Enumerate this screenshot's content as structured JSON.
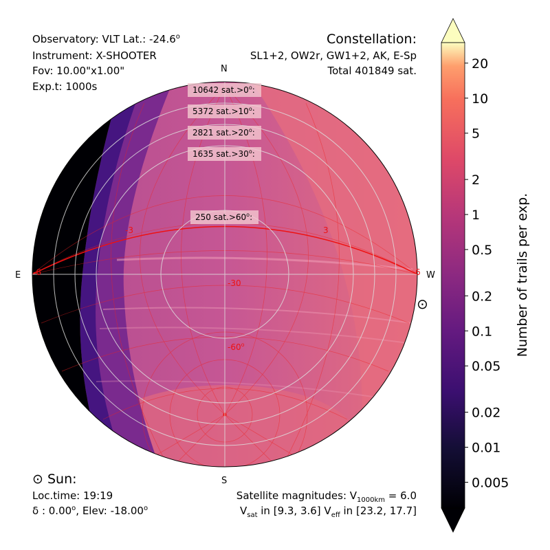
{
  "chart_data": {
    "type": "heatmap",
    "projection": "polar sky map (horizontal coordinates)",
    "observatory_text": "Observatory: VLT Lat.: -24.6",
    "observatory_deg": "o",
    "instrument_text": "Instrument: X-SHOOTER",
    "fov_text": "Fov: 10.00\"x1.00\"",
    "exptime_text": "Exp.t: 1000s",
    "constellation_title": "Constellation:",
    "constellation_names": "SL1+2, OW2r, GW1+2, AK, E-Sp",
    "constellation_total": "Total 401849 sat.",
    "directions": {
      "north": "N",
      "south": "S",
      "east": "E",
      "west": "W"
    },
    "elevation_counts": [
      {
        "label": "10642 sat.>0",
        "deg": "o",
        "suffix": ":"
      },
      {
        "label": "5372 sat.>10",
        "deg": "o",
        "suffix": ":"
      },
      {
        "label": "2821 sat.>20",
        "deg": "o",
        "suffix": ":"
      },
      {
        "label": "1635 sat.>30",
        "deg": "o",
        "suffix": ":"
      },
      {
        "label": "250 sat.>60",
        "deg": "o",
        "suffix": ":"
      }
    ],
    "altitude_circles_deg": [
      0,
      10,
      20,
      30,
      60
    ],
    "grid_labels": [
      "-3",
      "3",
      "-6",
      "6",
      "-30",
      "-60",
      "o"
    ],
    "sun_title": "Sun:",
    "sun_symbol": "⊙",
    "sun_loctime": "Loc.time: 19:19",
    "sun_delta": "δ : 0.00",
    "sun_elev": ", Elev: -18.00",
    "sun_deg": "o",
    "magnitude_line1": "Satellite magnitudes: V",
    "magnitude_sub1": "1000km",
    "magnitude_eq1": " = 6.0",
    "magnitude_line2_v": "V",
    "magnitude_sub_sat": "sat",
    "magnitude_range_sat": " in [9.3, 3.6]  V",
    "magnitude_sub_eff": "eff",
    "magnitude_range_eff": " in [23.2, 17.7]",
    "colorbar": {
      "label": "Number of trails per exp.",
      "scale": "log",
      "range": [
        0.003,
        30
      ],
      "ticks": [
        20,
        10,
        5,
        2,
        1,
        0.5,
        0.2,
        0.1,
        0.05,
        0.02,
        0.01,
        0.005
      ],
      "tick_labels": [
        "20",
        "10",
        "5",
        "2",
        "1",
        "0.5",
        "0.2",
        "0.1",
        "0.05",
        "0.02",
        "0.01",
        "0.005"
      ],
      "colormap": "magma",
      "extend": "both"
    },
    "colors": {
      "sky_main": "#e36a7f",
      "sky_mid": "#c0558f",
      "sky_purple": "#5f1d83",
      "shadow": "#000004",
      "grid_red": "#ee2222",
      "grid_white": "#dddddd"
    }
  }
}
